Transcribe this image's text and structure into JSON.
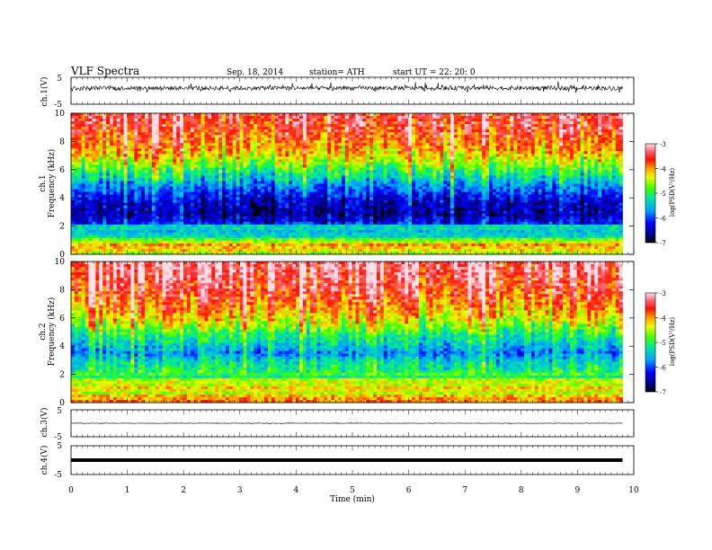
{
  "header": {
    "title": "VLF  Spectra",
    "date": "Sep. 18, 2014",
    "station": "station= ATH",
    "start": "start  UT  =    22: 20: 0"
  },
  "chart_data": [
    {
      "type": "line",
      "name": "ch1-waveform",
      "ylabel": "ch.1(V)",
      "yticks": [
        "5",
        "-5"
      ],
      "ylim": [
        -5,
        5
      ],
      "xlim": [
        0,
        10
      ],
      "trace_center": 1.0,
      "trace_amplitude": 1.6
    },
    {
      "type": "heatmap",
      "name": "ch1-spectrogram",
      "ylabel": [
        "ch.1",
        "Frequency  (kHz)"
      ],
      "xlim": [
        0,
        10
      ],
      "ylim": [
        0,
        10
      ],
      "yticks": [
        "0",
        "2",
        "4",
        "6",
        "8",
        "10"
      ],
      "time_span_min": [
        0,
        9.8
      ],
      "colorbar": {
        "label": "log(PSD(V²/Hz)",
        "range": [
          -7,
          -3
        ],
        "ticks": [
          "-3",
          "-4",
          "-5",
          "-6",
          "-7"
        ]
      },
      "profile_khz": [
        [
          0,
          -4.4
        ],
        [
          0.5,
          -3.8
        ],
        [
          1,
          -4.8
        ],
        [
          1.5,
          -5.2
        ],
        [
          2,
          -5.6
        ],
        [
          2.2,
          -6.2
        ],
        [
          2.8,
          -6.6
        ],
        [
          3.5,
          -6.5
        ],
        [
          4,
          -6.3
        ],
        [
          4.5,
          -6.0
        ],
        [
          5,
          -5.7
        ],
        [
          5.5,
          -5.3
        ],
        [
          6,
          -5.0
        ],
        [
          6.5,
          -4.6
        ],
        [
          7,
          -4.3
        ],
        [
          8,
          -3.9
        ],
        [
          9,
          -3.6
        ],
        [
          10,
          -3.5
        ]
      ]
    },
    {
      "type": "heatmap",
      "name": "ch2-spectrogram",
      "ylabel": [
        "ch.2",
        "Frequency  (kHz)"
      ],
      "xlim": [
        0,
        10
      ],
      "ylim": [
        0,
        10
      ],
      "yticks": [
        "0",
        "2",
        "4",
        "6",
        "8",
        "10"
      ],
      "time_span_min": [
        0,
        9.8
      ],
      "colorbar": {
        "label": "log(PSD(V²/Hz)",
        "range": [
          -7,
          -3
        ],
        "ticks": [
          "-3",
          "-4",
          "-5",
          "-6",
          "-7"
        ]
      },
      "profile_khz": [
        [
          0,
          -4.2
        ],
        [
          0.5,
          -4.0
        ],
        [
          1,
          -4.5
        ],
        [
          1.5,
          -4.8
        ],
        [
          2,
          -5.0
        ],
        [
          3,
          -5.4
        ],
        [
          3.5,
          -5.8
        ],
        [
          4,
          -5.5
        ],
        [
          5,
          -5.0
        ],
        [
          5.5,
          -4.6
        ],
        [
          6,
          -4.3
        ],
        [
          7,
          -3.9
        ],
        [
          8,
          -3.6
        ],
        [
          9,
          -3.4
        ],
        [
          10,
          -3.3
        ]
      ]
    },
    {
      "type": "line",
      "name": "ch3-waveform",
      "ylabel": "ch.3(V)",
      "yticks": [
        "5",
        "-5"
      ],
      "ylim": [
        -5,
        5
      ],
      "xlim": [
        0,
        10
      ],
      "trace_center": 0.0,
      "trace_amplitude": 0.2
    },
    {
      "type": "line",
      "name": "ch4-waveform",
      "ylabel": "ch.4(V)",
      "yticks": [
        "5",
        "-5"
      ],
      "ylim": [
        -5,
        5
      ],
      "xlim": [
        0,
        10
      ],
      "trace_center": 0.0,
      "trace_amplitude": 0.0
    }
  ],
  "xaxis": {
    "label": "Time  (min)",
    "ticks": [
      "0",
      "1",
      "2",
      "3",
      "4",
      "5",
      "6",
      "7",
      "8",
      "9",
      "10"
    ]
  }
}
